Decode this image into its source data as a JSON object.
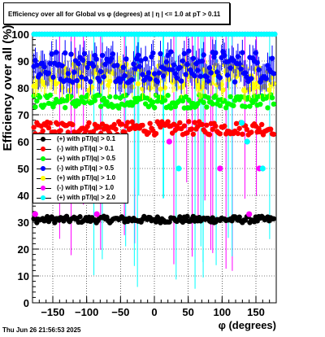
{
  "title": "Efficiency over all for Global vs φ (degrees) at | η | <= 1.0 at pT > 0.11",
  "timestamp": "Thu Jun 26 21:56:53 2025",
  "chart_data": {
    "type": "scatter",
    "title": "Efficiency over all for Global vs φ (degrees) at | η | <= 1.0 at pT > 0.11",
    "xlabel": "φ (degrees)",
    "ylabel": "Efficiency over all (%)",
    "xlim": [
      -180,
      180
    ],
    "ylim": [
      0,
      100
    ],
    "xticks": [
      -150,
      -100,
      -50,
      0,
      50,
      100,
      150
    ],
    "xtick_labels": [
      "−150",
      "−100",
      "−50",
      "0",
      "50",
      "100",
      "150"
    ],
    "yticks": [
      0,
      10,
      20,
      30,
      40,
      50,
      60,
      70,
      80,
      90,
      100
    ],
    "ytick_labels": [
      "0",
      "10",
      "20",
      "30",
      "40",
      "50",
      "60",
      "70",
      "80",
      "90",
      "100"
    ],
    "grid": true,
    "legend_position": "center-left",
    "series": [
      {
        "name": "(+) with pT/|q| > 0.1",
        "color": "#000000",
        "mean": 31,
        "jitter": 1.2
      },
      {
        "name": "(-) with pT/|q| > 0.1",
        "color": "#ff0000",
        "mean": 65,
        "jitter": 2.5
      },
      {
        "name": "(+) with pT/|q| > 0.5",
        "color": "#00ff00",
        "mean": 75,
        "jitter": 2.5
      },
      {
        "name": "(-) with pT/|q| > 0.5",
        "color": "#0000ff",
        "mean": 88,
        "jitter": 6
      },
      {
        "name": "(+) with pT/|q| > 1.0",
        "color": "#ffff00",
        "mean": 84,
        "jitter": 5
      },
      {
        "name": "(-) with pT/|q| > 1.0",
        "color": "#ff00ff",
        "mean": 100,
        "jitter": 0
      },
      {
        "name": "(+) with pT/|q| > 2.0",
        "color": "#00ffff",
        "mean": 100,
        "jitter": 0
      }
    ],
    "outliers": [
      {
        "series": 5,
        "x": -176,
        "y": 33
      },
      {
        "series": 5,
        "x": -85,
        "y": 33
      },
      {
        "series": 5,
        "x": 22,
        "y": 60
      },
      {
        "series": 5,
        "x": 97,
        "y": 50
      },
      {
        "series": 5,
        "x": 140,
        "y": 33
      },
      {
        "series": 5,
        "x": 155,
        "y": 50
      },
      {
        "series": 6,
        "x": 36,
        "y": 50
      },
      {
        "series": 6,
        "x": 137,
        "y": 60
      },
      {
        "series": 6,
        "x": 160,
        "y": 50
      },
      {
        "series": 6,
        "x": 129,
        "y": 67
      }
    ]
  }
}
